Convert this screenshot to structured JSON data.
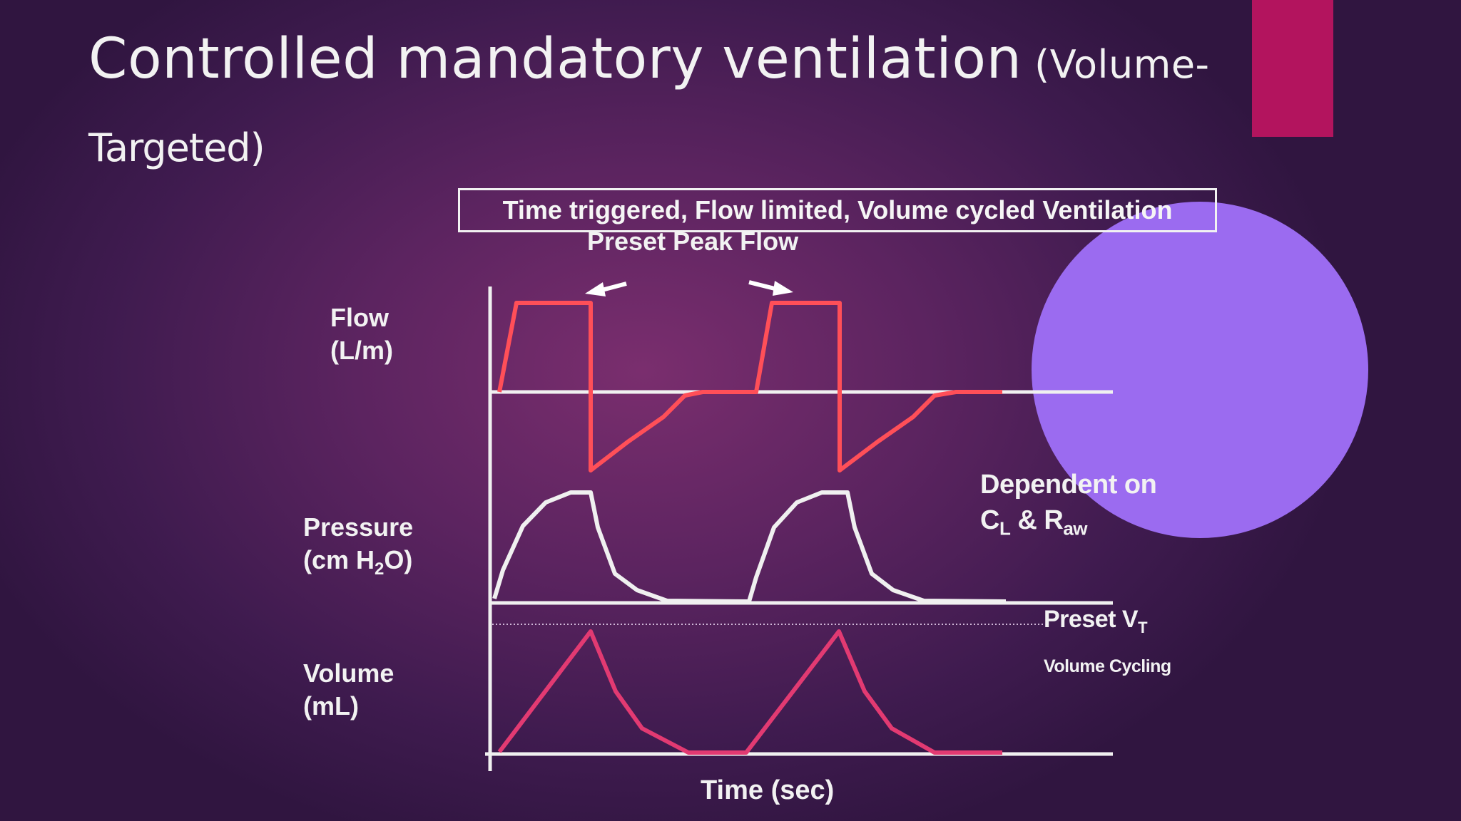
{
  "slide": {
    "title_main": "Controlled mandatory ventilation",
    "title_paren_open": " (Volume-",
    "title_line2": "Targeted)",
    "banner": "Time triggered, Flow limited, Volume cycled Ventilation"
  },
  "labels": {
    "preset_peak_flow": "Preset Peak Flow",
    "flow": "Flow",
    "flow_unit": "(L/m)",
    "pressure": "Pressure",
    "pressure_unit_pre": "(cm H",
    "pressure_unit_sub": "2",
    "pressure_unit_post": "O)",
    "volume": "Volume",
    "volume_unit": "(mL)",
    "time_axis": "Time (sec)",
    "dependent_on": "Dependent on",
    "cl_c": "C",
    "cl_sub": "L",
    "amp": " & R",
    "raw_sub": "aw",
    "preset_vt": "Preset V",
    "preset_vt_sub": "T",
    "volume_cycling": "Volume Cycling"
  },
  "colors": {
    "flow_curve": "#ff4f58",
    "pressure_curve": "#f0f0f0",
    "volume_curve": "#e23a72",
    "accent_bar": "#b3145e",
    "circle": "#9b6bf0"
  }
}
